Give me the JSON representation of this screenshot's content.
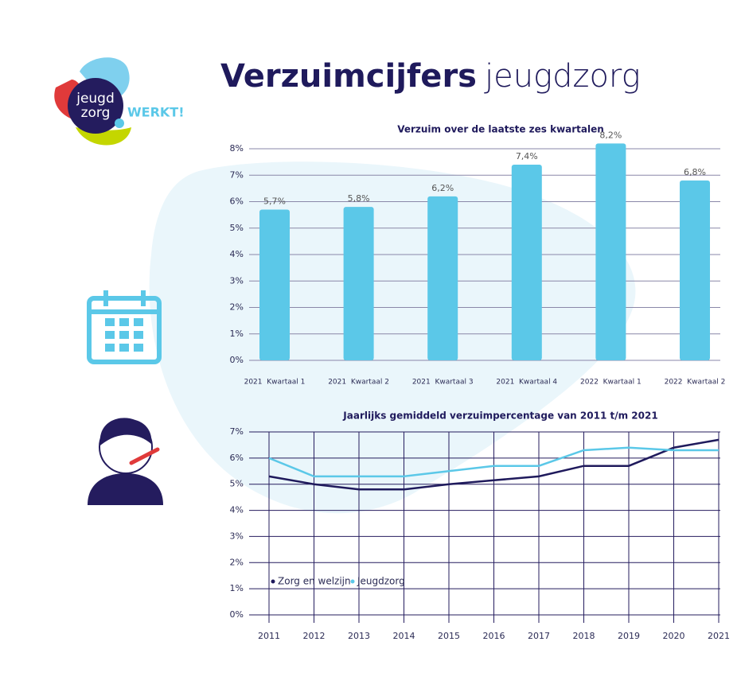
{
  "header": {
    "title_bold": "Verzuimcijfers",
    "title_light": "jeugdzorg"
  },
  "logo": {
    "line1": "jeugd",
    "line2": "zorg",
    "tag": "WERKT!"
  },
  "chart_data": [
    {
      "type": "bar",
      "title": "Verzuim over de laatste zes kwartalen",
      "categories": [
        "2021  Kwartaal 1",
        "2021  Kwartaal 2",
        "2021  Kwartaal 3",
        "2021  Kwartaal 4",
        "2022  Kwartaal 1",
        "2022  Kwartaal 2"
      ],
      "values": [
        5.7,
        5.8,
        6.2,
        7.4,
        8.2,
        6.8
      ],
      "value_labels": [
        "5,7%",
        "5,8%",
        "6,2%",
        "7,4%",
        "8,2%",
        "6,8%"
      ],
      "color": "#5bc8e8",
      "ylim": [
        0,
        8
      ],
      "yticks": [
        {
          "value": 0,
          "label": "0%"
        },
        {
          "value": 1,
          "label": "1%"
        },
        {
          "value": 2,
          "label": "2%"
        },
        {
          "value": 3,
          "label": "3%"
        },
        {
          "value": 4,
          "label": "4%"
        },
        {
          "value": 5,
          "label": "5%"
        },
        {
          "value": 6,
          "label": "6%"
        },
        {
          "value": 7,
          "label": "7%"
        },
        {
          "value": 8,
          "label": "8%"
        }
      ],
      "grid": true
    },
    {
      "type": "line",
      "title": "Jaarlijks gemiddeld verzuimpercentage van 2011 t/m 2021",
      "categories": [
        "2011",
        "2012",
        "2013",
        "2014",
        "2015",
        "2016",
        "2017",
        "2018",
        "2019",
        "2020",
        "2021"
      ],
      "series": [
        {
          "name": "Zorg en welzijn",
          "color": "#1f1a5c",
          "values": [
            5.3,
            5.0,
            4.8,
            4.8,
            5.0,
            5.15,
            5.3,
            5.7,
            5.7,
            6.4,
            6.7
          ]
        },
        {
          "name": "Jeugdzorg",
          "color": "#5bc8e8",
          "values": [
            6.0,
            5.3,
            5.3,
            5.3,
            5.5,
            5.7,
            5.7,
            6.3,
            6.4,
            6.3,
            6.3
          ]
        }
      ],
      "ylim": [
        0,
        7
      ],
      "yticks": [
        {
          "value": 0,
          "label": "0%"
        },
        {
          "value": 1,
          "label": "1%"
        },
        {
          "value": 2,
          "label": "2%"
        },
        {
          "value": 3,
          "label": "3%"
        },
        {
          "value": 4,
          "label": "4%"
        },
        {
          "value": 5,
          "label": "5%"
        },
        {
          "value": 6,
          "label": "6%"
        },
        {
          "value": 7,
          "label": "7%"
        }
      ],
      "grid": true,
      "legend": "lower-left"
    }
  ]
}
